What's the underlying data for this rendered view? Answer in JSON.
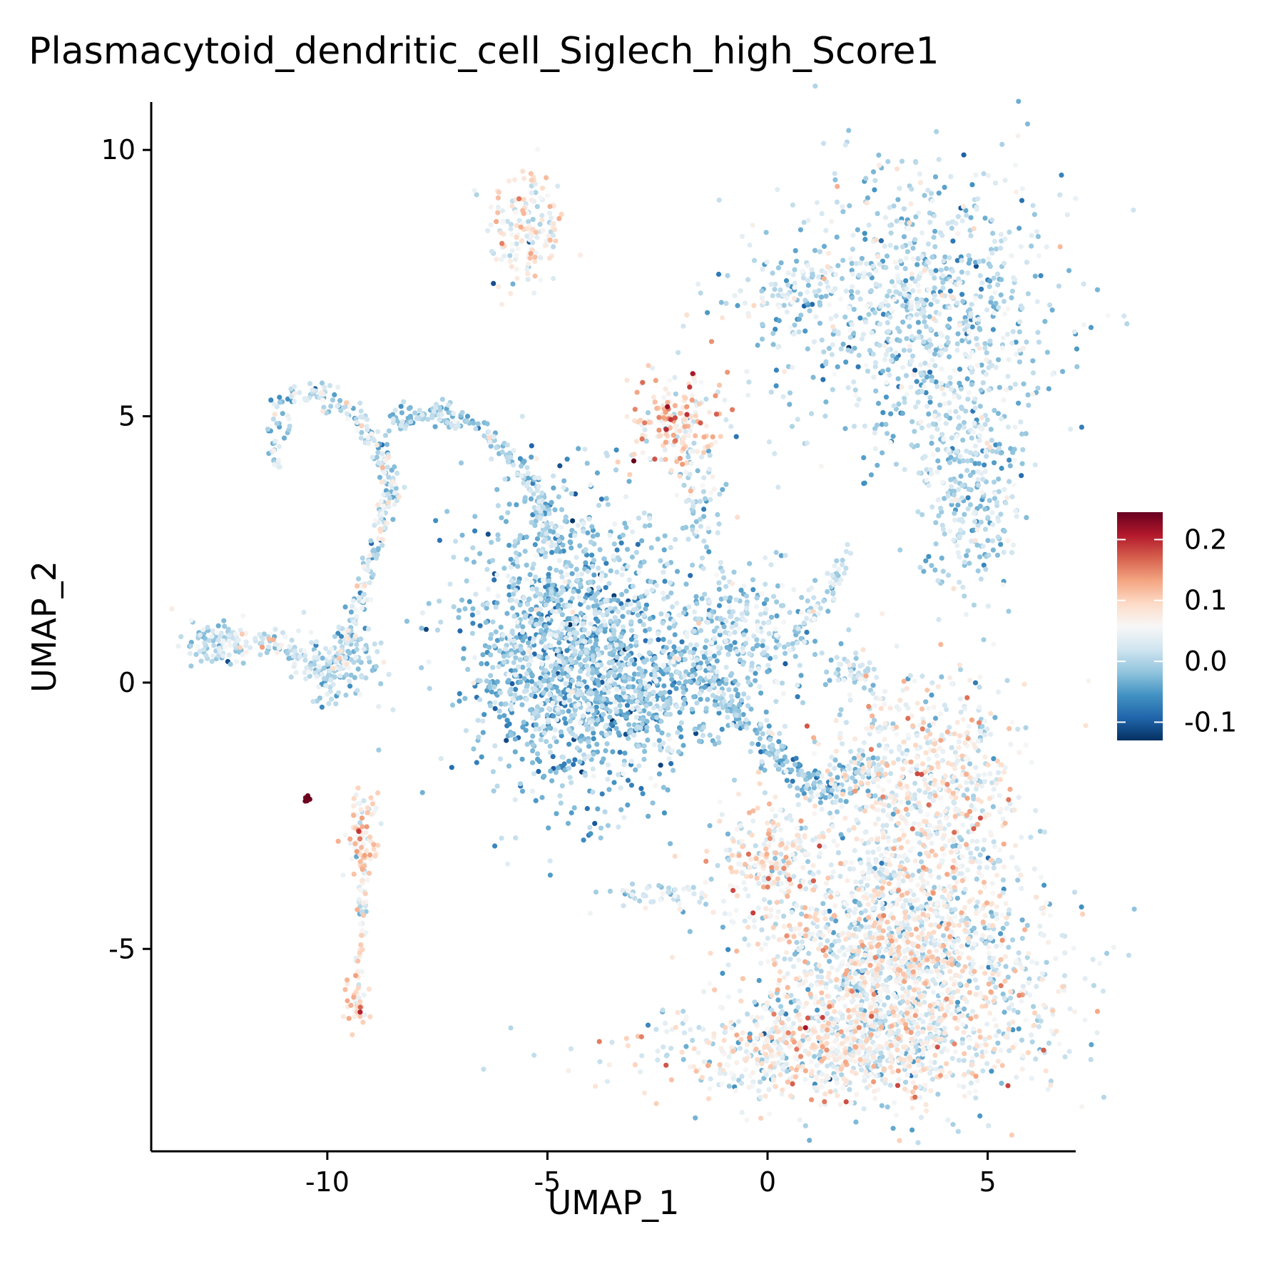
{
  "chart_data": {
    "type": "scatter",
    "title": "Plasmacytoid_dendritic_cell_Siglech_high_Score1",
    "xlabel": "UMAP_1",
    "ylabel": "UMAP_2",
    "xlim": [
      -14,
      7
    ],
    "ylim": [
      -8.8,
      10.9
    ],
    "xticks": [
      -10,
      -5,
      0,
      5
    ],
    "yticks": [
      -5,
      0,
      5,
      10
    ],
    "grid": false,
    "legend_position": "right",
    "colorbar": {
      "min": -0.13,
      "max": 0.245,
      "ticks": [
        {
          "value": 0.2,
          "label": "0.2"
        },
        {
          "value": 0.1,
          "label": "0.1"
        },
        {
          "value": 0.0,
          "label": "0.0"
        },
        {
          "value": -0.1,
          "label": "-0.1"
        }
      ],
      "colors": [
        "#053061",
        "#2166ac",
        "#4393c3",
        "#92c5de",
        "#d1e5f0",
        "#f7f7f7",
        "#fddbc7",
        "#f4a582",
        "#d6604d",
        "#b2182b",
        "#67001f"
      ]
    },
    "clusters": [
      {
        "name": "top-small",
        "cx": -5.5,
        "cy": 8.5,
        "sx": 0.45,
        "sy": 0.65,
        "n": 160,
        "mean": 0.06,
        "sd": 0.04
      },
      {
        "name": "upper-right-large",
        "cx": 3.5,
        "cy": 7.0,
        "sx": 1.6,
        "sy": 1.4,
        "n": 900,
        "mean": 0.005,
        "sd": 0.035
      },
      {
        "name": "upper-right-tail",
        "cx": 4.6,
        "cy": 3.8,
        "sx": 0.6,
        "sy": 1.0,
        "n": 300,
        "mean": 0.0,
        "sd": 0.03
      },
      {
        "name": "upper-right-arm",
        "cx": 0.5,
        "cy": 7.3,
        "sx": 0.9,
        "sy": 0.35,
        "n": 90,
        "mean": 0.01,
        "sd": 0.04
      },
      {
        "name": "mid-small",
        "cx": -2.0,
        "cy": 4.8,
        "sx": 0.55,
        "sy": 0.55,
        "n": 200,
        "mean": 0.08,
        "sd": 0.05
      },
      {
        "name": "mid-small-tail",
        "cx": -1.5,
        "cy": 3.2,
        "sx": 0.25,
        "sy": 0.7,
        "n": 50,
        "mean": 0.0,
        "sd": 0.03
      },
      {
        "name": "center-dense",
        "cx": -4.5,
        "cy": 0.8,
        "sx": 1.2,
        "sy": 1.4,
        "n": 1300,
        "mean": -0.02,
        "sd": 0.035
      },
      {
        "name": "center-bottom",
        "cx": -3.2,
        "cy": -0.3,
        "sx": 1.4,
        "sy": 0.6,
        "n": 500,
        "mean": -0.02,
        "sd": 0.035
      },
      {
        "name": "center-right-bridge",
        "cx": -0.8,
        "cy": 1.0,
        "sx": 1.0,
        "sy": 0.6,
        "n": 300,
        "mean": 0.0,
        "sd": 0.035
      },
      {
        "name": "left-loop",
        "cx": -9.8,
        "cy": 0.3,
        "sx": 0.5,
        "sy": 0.4,
        "n": 120,
        "mean": 0.0,
        "sd": 0.03
      },
      {
        "name": "left-end",
        "cx": -12.5,
        "cy": 0.8,
        "sx": 0.4,
        "sy": 0.25,
        "n": 80,
        "mean": 0.01,
        "sd": 0.03
      },
      {
        "name": "left-column",
        "cx": -9.2,
        "cy": -2.8,
        "sx": 0.2,
        "sy": 0.45,
        "n": 80,
        "mean": 0.08,
        "sd": 0.04
      },
      {
        "name": "left-column-bottom",
        "cx": -9.3,
        "cy": -6.1,
        "sx": 0.15,
        "sy": 0.2,
        "n": 30,
        "mean": 0.09,
        "sd": 0.03
      },
      {
        "name": "lower-right-top",
        "cx": 3.5,
        "cy": -1.9,
        "sx": 1.2,
        "sy": 1.0,
        "n": 700,
        "mean": 0.05,
        "sd": 0.04
      },
      {
        "name": "lower-right-main",
        "cx": 3.0,
        "cy": -5.2,
        "sx": 1.7,
        "sy": 1.1,
        "n": 1700,
        "mean": 0.04,
        "sd": 0.045
      },
      {
        "name": "lower-right-bottom",
        "cx": 1.5,
        "cy": -6.9,
        "sx": 2.0,
        "sy": 0.5,
        "n": 700,
        "mean": 0.05,
        "sd": 0.045
      },
      {
        "name": "lower-left-lobe",
        "cx": 0.0,
        "cy": -3.3,
        "sx": 0.6,
        "sy": 0.55,
        "n": 200,
        "mean": 0.06,
        "sd": 0.04
      },
      {
        "name": "lower-left-arm",
        "cx": -2.5,
        "cy": -4.0,
        "sx": 0.6,
        "sy": 0.12,
        "n": 50,
        "mean": 0.02,
        "sd": 0.03
      },
      {
        "name": "red-spot",
        "cx": -10.45,
        "cy": -2.2,
        "sx": 0.05,
        "sy": 0.05,
        "n": 8,
        "mean": 0.24,
        "sd": 0.005
      }
    ],
    "paths": [
      {
        "name": "left-arc",
        "points": [
          [
            -12.5,
            0.8
          ],
          [
            -11.5,
            0.8
          ],
          [
            -10.5,
            0.5
          ],
          [
            -10.0,
            0.1
          ],
          [
            -9.6,
            0.5
          ],
          [
            -9.3,
            1.5
          ],
          [
            -8.9,
            2.6
          ],
          [
            -8.5,
            3.6
          ],
          [
            -8.8,
            4.4
          ],
          [
            -9.3,
            5.0
          ],
          [
            -10.0,
            5.4
          ],
          [
            -10.7,
            5.5
          ],
          [
            -11.1,
            5.1
          ],
          [
            -11.1,
            4.0
          ]
        ],
        "n": 420,
        "spread": 0.12,
        "mean": 0.01,
        "sd": 0.04
      },
      {
        "name": "upper-stream",
        "points": [
          [
            -8.5,
            4.9
          ],
          [
            -7.6,
            5.1
          ],
          [
            -6.8,
            4.9
          ],
          [
            -6.0,
            4.4
          ],
          [
            -5.3,
            3.6
          ],
          [
            -5.0,
            2.6
          ]
        ],
        "n": 220,
        "spread": 0.12,
        "mean": -0.005,
        "sd": 0.03
      },
      {
        "name": "lower-stream",
        "points": [
          [
            -1.5,
            0.3
          ],
          [
            -0.6,
            -0.6
          ],
          [
            0.3,
            -1.5
          ],
          [
            1.3,
            -2.0
          ],
          [
            2.4,
            -1.6
          ]
        ],
        "n": 260,
        "spread": 0.18,
        "mean": -0.02,
        "sd": 0.03
      },
      {
        "name": "right-spur",
        "points": [
          [
            0.6,
            0.9
          ],
          [
            1.3,
            1.5
          ],
          [
            1.8,
            2.5
          ]
        ],
        "n": 50,
        "spread": 0.1,
        "mean": 0.01,
        "sd": 0.03
      },
      {
        "name": "right-small-spur",
        "points": [
          [
            1.3,
            0.0
          ],
          [
            1.8,
            0.3
          ],
          [
            2.5,
            0.0
          ]
        ],
        "n": 40,
        "spread": 0.12,
        "mean": 0.0,
        "sd": 0.03
      },
      {
        "name": "lower-column",
        "points": [
          [
            -9.2,
            -3.2
          ],
          [
            -9.2,
            -4.5
          ],
          [
            -9.3,
            -5.6
          ],
          [
            -9.3,
            -6.1
          ]
        ],
        "n": 60,
        "spread": 0.06,
        "mean": 0.06,
        "sd": 0.04
      }
    ]
  }
}
